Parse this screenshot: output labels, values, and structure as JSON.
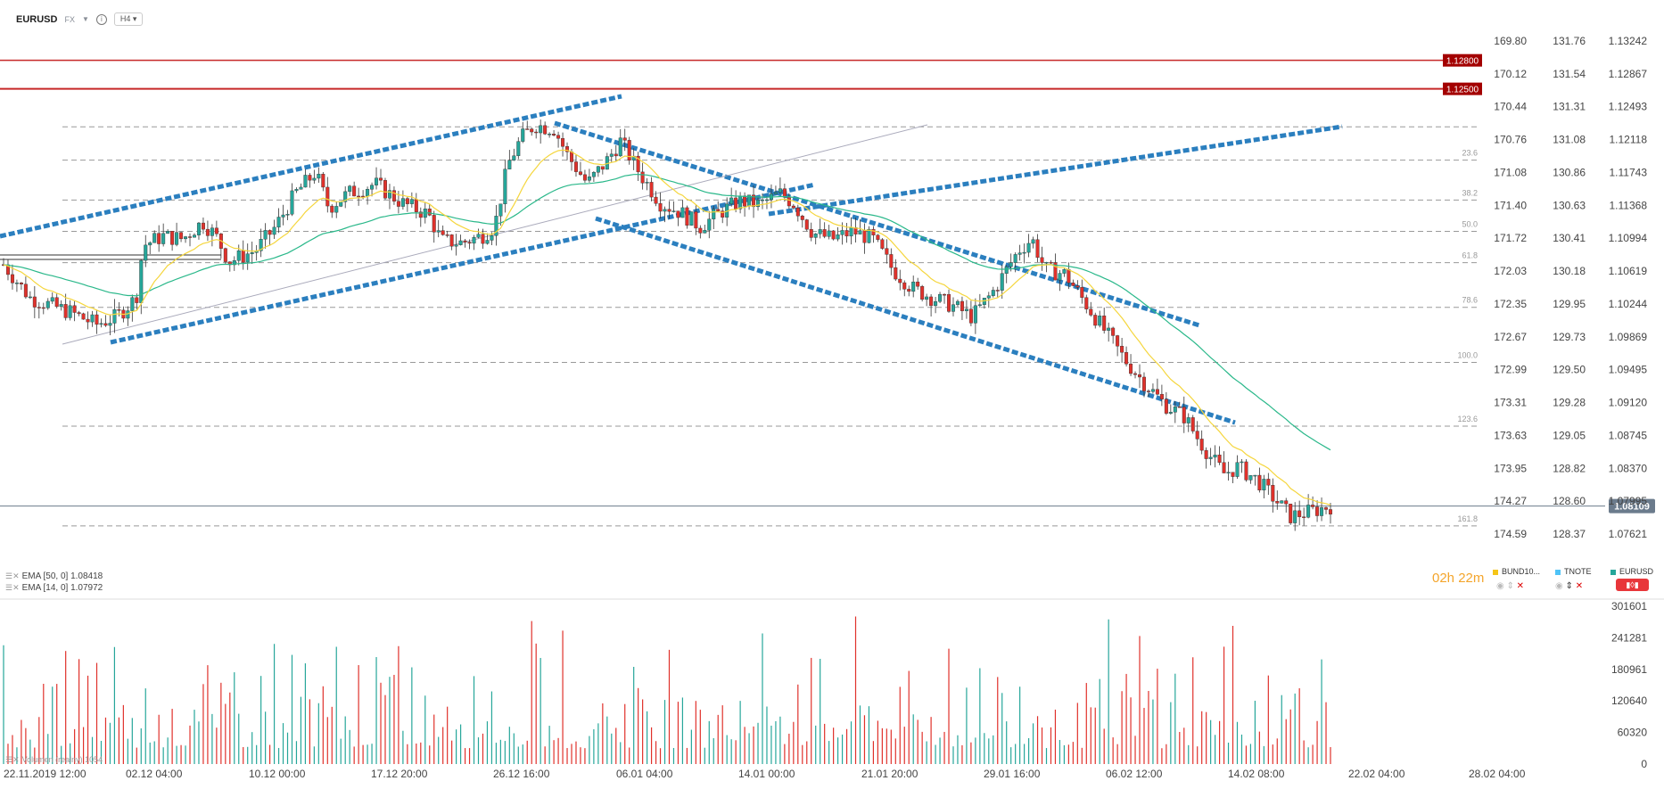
{
  "header": {
    "symbol": "EURUSD",
    "market": "FX",
    "timeframe": "H4"
  },
  "indicators": [
    {
      "label": "EMA  [50, 0]  1.08418"
    },
    {
      "label": "EMA  [14, 0]  1.07972"
    }
  ],
  "volume_label": "Volumen (realny) 1054",
  "timer": "02h 22m",
  "legend": [
    {
      "name": "BUND10...",
      "color": "#f5c518"
    },
    {
      "name": "TNOTE",
      "color": "#4fc3f7"
    },
    {
      "name": "EURUSD",
      "color": "#26a69a"
    }
  ],
  "colors": {
    "up": "#26a69a",
    "down": "#e0312b",
    "ema50": "#2ab88a",
    "ema14": "#f5d63d",
    "trend": "#2b7fbf",
    "hline": "#c62828",
    "current": "#6b7b8c"
  },
  "chart_data": {
    "type": "candlestick",
    "symbol": "EURUSD",
    "timeframe": "H4",
    "price_axis": {
      "ticks": [
        1.13242,
        1.12867,
        1.12493,
        1.12118,
        1.11743,
        1.11368,
        1.10994,
        1.10619,
        1.10244,
        1.09869,
        1.09495,
        1.0912,
        1.08745,
        1.0837,
        1.07995,
        1.07621
      ],
      "range": [
        1.0757,
        1.1336
      ]
    },
    "secondary_axes": [
      {
        "name": "BUND10",
        "ticks": [
          "169.80",
          "170.12",
          "170.44",
          "170.76",
          "171.08",
          "171.40",
          "171.72",
          "172.03",
          "172.35",
          "172.67",
          "172.99",
          "173.31",
          "173.63",
          "173.95",
          "174.27",
          "174.59"
        ]
      },
      {
        "name": "TNOTE",
        "ticks": [
          "131.76",
          "131.54",
          "131.31",
          "131.08",
          "130.86",
          "130.63",
          "130.41",
          "130.18",
          "129.95",
          "129.73",
          "129.50",
          "129.28",
          "129.05",
          "128.82",
          "128.60",
          "128.37"
        ]
      }
    ],
    "x_labels": [
      "22.11.2019  12:00",
      "02.12  04:00",
      "10.12  00:00",
      "17.12  20:00",
      "26.12  16:00",
      "06.01  04:00",
      "14.01  00:00",
      "21.01  20:00",
      "29.01  16:00",
      "06.02  12:00",
      "14.02  08:00",
      "22.02  04:00",
      "28.02  04:00"
    ],
    "close_path": [
      [
        0,
        1.1065
      ],
      [
        0.02,
        1.103
      ],
      [
        0.05,
        1.1015
      ],
      [
        0.07,
        1.1002
      ],
      [
        0.085,
        1.101
      ],
      [
        0.1,
        1.103
      ],
      [
        0.105,
        1.1085
      ],
      [
        0.12,
        1.1095
      ],
      [
        0.135,
        1.1092
      ],
      [
        0.15,
        1.111
      ],
      [
        0.16,
        1.1095
      ],
      [
        0.17,
        1.1068
      ],
      [
        0.19,
        1.108
      ],
      [
        0.205,
        1.1105
      ],
      [
        0.22,
        1.114
      ],
      [
        0.235,
        1.1162
      ],
      [
        0.245,
        1.1125
      ],
      [
        0.26,
        1.114
      ],
      [
        0.28,
        1.115
      ],
      [
        0.3,
        1.113
      ],
      [
        0.32,
        1.1118
      ],
      [
        0.33,
        1.109
      ],
      [
        0.345,
        1.1088
      ],
      [
        0.36,
        1.1095
      ],
      [
        0.37,
        1.1105
      ],
      [
        0.38,
        1.117
      ],
      [
        0.39,
        1.1198
      ],
      [
        0.4,
        1.1212
      ],
      [
        0.415,
        1.1208
      ],
      [
        0.425,
        1.118
      ],
      [
        0.44,
        1.115
      ],
      [
        0.455,
        1.1175
      ],
      [
        0.465,
        1.1195
      ],
      [
        0.48,
        1.116
      ],
      [
        0.495,
        1.113
      ],
      [
        0.51,
        1.112
      ],
      [
        0.525,
        1.1105
      ],
      [
        0.54,
        1.112
      ],
      [
        0.555,
        1.1132
      ],
      [
        0.57,
        1.1128
      ],
      [
        0.585,
        1.114
      ],
      [
        0.595,
        1.113
      ],
      [
        0.61,
        1.1098
      ],
      [
        0.625,
        1.1092
      ],
      [
        0.64,
        1.11
      ],
      [
        0.655,
        1.1092
      ],
      [
        0.67,
        1.106
      ],
      [
        0.685,
        1.104
      ],
      [
        0.7,
        1.103
      ],
      [
        0.715,
        1.1022
      ],
      [
        0.73,
        1.101
      ],
      [
        0.745,
        1.1035
      ],
      [
        0.765,
        1.108
      ],
      [
        0.775,
        1.1092
      ],
      [
        0.785,
        1.106
      ],
      [
        0.8,
        1.1055
      ],
      [
        0.815,
        1.1025
      ],
      [
        0.83,
        1.0995
      ],
      [
        0.845,
        1.0965
      ],
      [
        0.86,
        1.094
      ],
      [
        0.875,
        1.0918
      ],
      [
        0.89,
        1.0905
      ],
      [
        0.9,
        1.0882
      ],
      [
        0.91,
        1.0862
      ],
      [
        0.92,
        1.0845
      ],
      [
        0.93,
        1.0852
      ],
      [
        0.945,
        1.0838
      ],
      [
        0.96,
        1.0815
      ],
      [
        0.97,
        1.08
      ],
      [
        0.985,
        1.0805
      ],
      [
        1.0,
        1.0811
      ]
    ],
    "current_price": 1.08109,
    "horizontal_levels": [
      1.128,
      1.125
    ],
    "fibonacci_levels": [
      {
        "label": "23.6"
      },
      {
        "label": "38.2"
      },
      {
        "label": "50.0"
      },
      {
        "label": "61.8"
      },
      {
        "label": "78.6"
      },
      {
        "label": "100.0"
      },
      {
        "label": "123.6"
      },
      {
        "label": "161.8"
      }
    ],
    "fibonacci_prices": [
      1.1175,
      1.1133,
      1.11,
      1.1067,
      1.102,
      1.0962,
      1.0895,
      1.079
    ],
    "ema_values": {
      "ema50": 1.08418,
      "ema14": 1.07972
    },
    "volume_axis": {
      "ticks": [
        301601,
        241281,
        180961,
        120640,
        60320,
        0
      ],
      "max": 301601
    },
    "volume_label": "Volumen (realny) 1054",
    "grid": false
  }
}
